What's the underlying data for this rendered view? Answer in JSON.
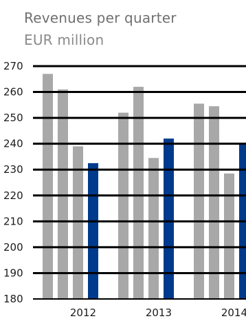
{
  "chart_data": {
    "type": "bar",
    "title": "Revenues per quarter",
    "subtitle": "EUR million",
    "xlabel": "",
    "ylabel": "",
    "ylim": [
      180,
      270
    ],
    "yticks": [
      270,
      260,
      250,
      240,
      230,
      220,
      210,
      200,
      190,
      180
    ],
    "grid": true,
    "colors": {
      "previous_quarters": "#a8a8a8",
      "fourth_quarter": "#003a8c",
      "gridline": "#000000"
    },
    "groups": [
      {
        "label": "2012",
        "values": [
          267,
          261,
          239,
          232.5
        ]
      },
      {
        "label": "2013",
        "values": [
          252,
          262,
          234.5,
          242
        ]
      },
      {
        "label": "2014",
        "values": [
          255.5,
          254.5,
          228.5,
          240
        ]
      }
    ]
  }
}
